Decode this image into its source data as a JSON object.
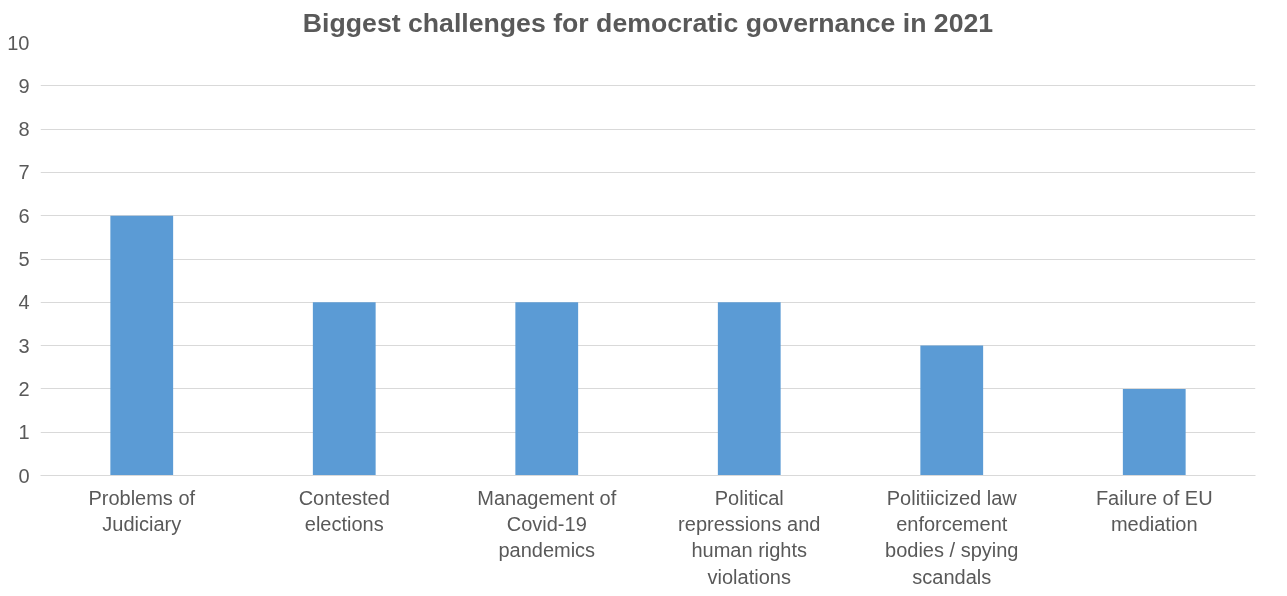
{
  "chart_data": {
    "type": "bar",
    "title": "Biggest challenges for democratic governance in 2021",
    "categories": [
      "Problems of Judiciary",
      "Contested elections",
      "Management of Covid-19 pandemics",
      "Political repressions and human rights violations",
      "Politiicized law enforcement bodies / spying scandals",
      "Failure of EU mediation"
    ],
    "values": [
      6,
      4,
      4,
      4,
      3,
      2
    ],
    "color": "#5b9bd5",
    "ylim": [
      0,
      10
    ],
    "yticks": [
      0,
      1,
      2,
      3,
      4,
      5,
      6,
      7,
      8,
      9,
      10
    ],
    "grid": "y"
  }
}
